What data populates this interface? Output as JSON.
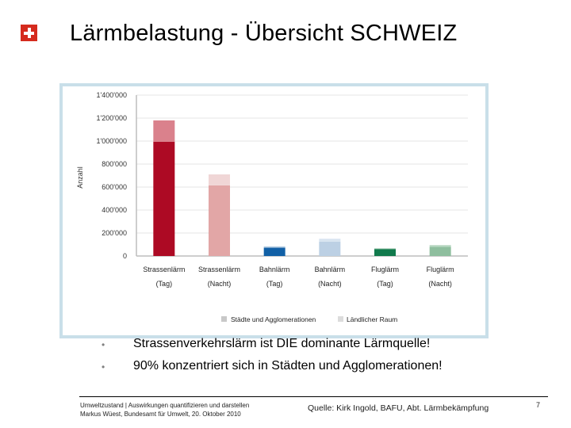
{
  "slide": {
    "title": "Lärmbelastung - Übersicht SCHWEIZ",
    "logo": "swiss-cross",
    "bullets": [
      "Strassenverkehrslärm ist DIE dominante Lärmquelle!",
      "90% konzentriert sich in Städten und Agglomerationen!"
    ],
    "footer": {
      "left_line1": "Umweltzustand | Auswirkungen quantifizieren und darstellen",
      "left_line2": "Markus Wüest, Bundesamt für Umwelt, 20. Oktober 2010",
      "source": "Quelle: Kirk Ingold, BAFU, Abt. Lärmbekämpfung",
      "page": "7"
    }
  },
  "chart_data": {
    "type": "bar",
    "stacked": true,
    "ylabel": "Anzahl",
    "ylim": [
      0,
      1400000
    ],
    "yticks": [
      0,
      200000,
      400000,
      600000,
      800000,
      1000000,
      1200000,
      1400000
    ],
    "ytick_labels": [
      "0",
      "200'000",
      "400'000",
      "600'000",
      "800'000",
      "1'000'000",
      "1'200'000",
      "1'400'000"
    ],
    "grid": true,
    "legend_position": "bottom",
    "categories": [
      {
        "line1": "Strassenlärm",
        "line2": "(Tag)"
      },
      {
        "line1": "Strassenlärm",
        "line2": "(Nacht)"
      },
      {
        "line1": "Bahnlärm",
        "line2": "(Tag)"
      },
      {
        "line1": "Bahnlärm",
        "line2": "(Nacht)"
      },
      {
        "line1": "Fluglärm",
        "line2": "(Tag)"
      },
      {
        "line1": "Fluglärm",
        "line2": "(Nacht)"
      }
    ],
    "series": [
      {
        "name": "Städte und Agglomerationen",
        "legend_color": "#c8c8c8",
        "values": [
          995000,
          615000,
          70000,
          125000,
          60000,
          80000
        ]
      },
      {
        "name": "Ländlicher Raum",
        "legend_color": "#dcdcdc",
        "values": [
          185000,
          95000,
          10000,
          25000,
          5000,
          15000
        ]
      }
    ],
    "colors": {
      "bottom": [
        "#ad0a24",
        "#e2a6a6",
        "#1160a6",
        "#bcd0e4",
        "#117a4c",
        "#8ebe9e"
      ],
      "top": [
        "#da818c",
        "#f0d6d6",
        "#6e9cc8",
        "#d8e4f0",
        "#6aa884",
        "#b8d8c2"
      ]
    }
  }
}
